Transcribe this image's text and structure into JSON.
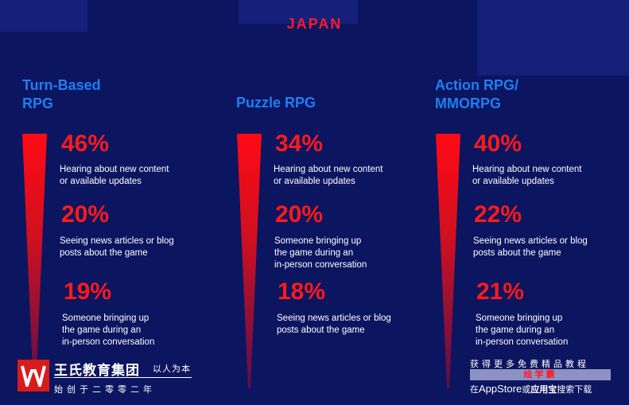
{
  "title": "JAPAN",
  "categories": [
    {
      "name": "Turn-Based\nRPG",
      "stats": [
        {
          "pct": "46%",
          "text": "Hearing about new content\nor available updates"
        },
        {
          "pct": "20%",
          "text": "Seeing news articles or blog\nposts about the game"
        },
        {
          "pct": "19%",
          "text": "Someone bringing up\nthe game during an\nin-person conversation"
        }
      ]
    },
    {
      "name": "Puzzle RPG",
      "stats": [
        {
          "pct": "34%",
          "text": "Hearing about new content\nor available updates"
        },
        {
          "pct": "20%",
          "text": "Someone bringing up\nthe game during an\nin-person conversation"
        },
        {
          "pct": "18%",
          "text": "Seeing news articles or blog\nposts about the game"
        }
      ]
    },
    {
      "name": "Action RPG/\nMMORPG",
      "stats": [
        {
          "pct": "40%",
          "text": "Hearing about new content\nor available updates"
        },
        {
          "pct": "22%",
          "text": "Seeing news articles or blog\nposts about the game"
        },
        {
          "pct": "21%",
          "text": "Someone bringing up\nthe game during an\nin-person conversation"
        }
      ]
    }
  ],
  "watermark_left": {
    "name": "王氏教育集团",
    "slogan": "以人为本",
    "since": "始创于二零零二年"
  },
  "watermark_right": {
    "top": "获得更多免费精品教程",
    "bar": "绘学霸",
    "bottom_pre": "在",
    "bottom_app": "AppStore",
    "bottom_mid": "或",
    "bottom_store": "应用宝",
    "bottom_post": "搜索下载"
  },
  "colors": {
    "background": "#0c1560",
    "accent_red": "#ff1a1a",
    "category_blue": "#1f7ff2"
  }
}
